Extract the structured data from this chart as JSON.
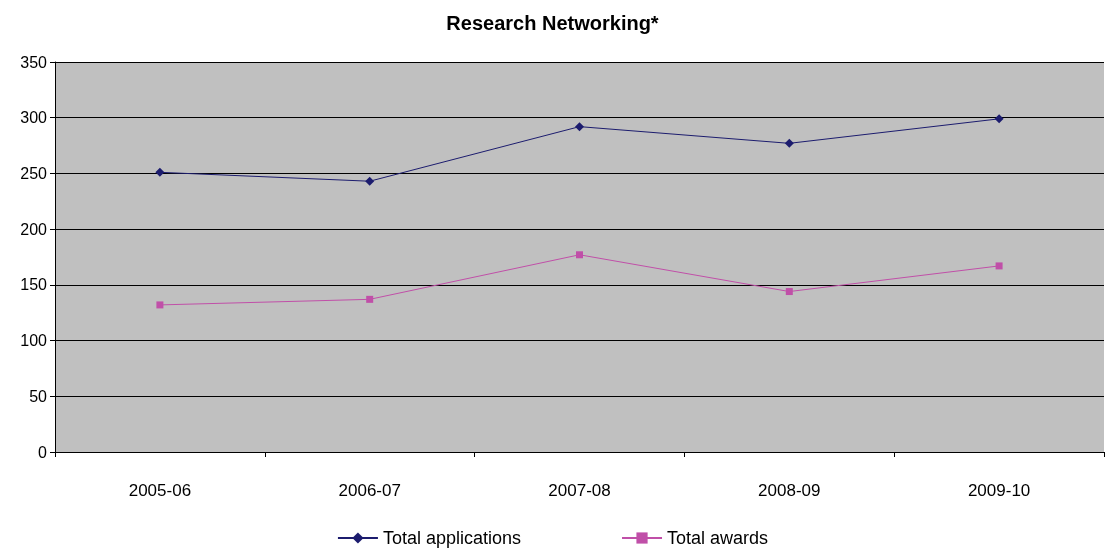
{
  "chart_data": {
    "type": "line",
    "title": "Research Networking*",
    "categories": [
      "2005-06",
      "2006-07",
      "2007-08",
      "2008-09",
      "2009-10"
    ],
    "series": [
      {
        "name": "Total applications",
        "color": "#1c1c6e",
        "marker": "diamond",
        "values": [
          251,
          243,
          292,
          277,
          299
        ]
      },
      {
        "name": "Total awards",
        "color": "#c04fa8",
        "marker": "square",
        "values": [
          132,
          137,
          177,
          144,
          167
        ]
      }
    ],
    "ylim": [
      0,
      350
    ],
    "yticks": [
      0,
      50,
      100,
      150,
      200,
      250,
      300,
      350
    ],
    "grid": "y",
    "legend": "bottom"
  }
}
